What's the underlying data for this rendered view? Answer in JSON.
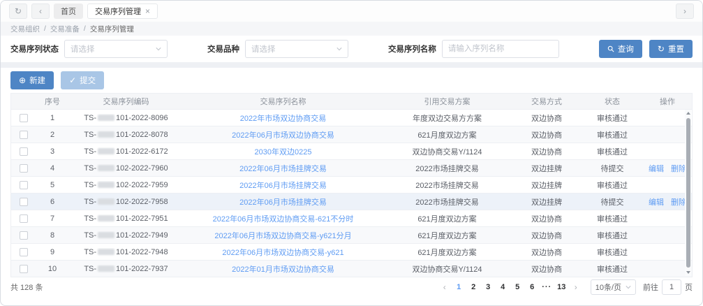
{
  "icons": {
    "refresh": "↻",
    "back": "‹",
    "forward": "›",
    "close": "×",
    "plus": "⊕",
    "check": "✓"
  },
  "colors": {
    "primary_button": "#4e85c5",
    "link": "#5f9cf3"
  },
  "tabbar": {
    "tabs": [
      {
        "label": "首页"
      },
      {
        "label": "交易序列管理"
      }
    ]
  },
  "breadcrumb": {
    "items": [
      "交易组织",
      "交易准备",
      "交易序列管理"
    ],
    "separator": "/"
  },
  "filters": {
    "status_label": "交易序列状态",
    "status_placeholder": "请选择",
    "variety_label": "交易品种",
    "variety_placeholder": "请选择",
    "name_label": "交易序列名称",
    "name_placeholder": "请输入序列名称",
    "search_label": "查询",
    "reset_label": "重置"
  },
  "toolbar": {
    "create_label": "新建",
    "submit_label": "提交"
  },
  "table": {
    "headers": [
      "序号",
      "交易序列编码",
      "交易序列名称",
      "引用交易方案",
      "交易方式",
      "状态",
      "操作"
    ],
    "rows": [
      {
        "no": "1",
        "code_pre": "TS-",
        "code_post": "101-2022-8096",
        "name": "2022年市场双边协商交易",
        "plan": "年度双边交易方方案",
        "mode": "双边协商",
        "status": "审核通过",
        "actions": []
      },
      {
        "no": "2",
        "code_pre": "TS-",
        "code_post": "101-2022-8078",
        "name": "2022年06月市场双边协商交易",
        "plan": "621月度双边方案",
        "mode": "双边协商",
        "status": "审核通过",
        "actions": []
      },
      {
        "no": "3",
        "code_pre": "TS-",
        "code_post": "101-2022-6172",
        "name": "2030年双边0225",
        "plan": "双边协商交易Y/1124",
        "mode": "双边协商",
        "status": "审核通过",
        "actions": []
      },
      {
        "no": "4",
        "code_pre": "TS-",
        "code_post": "102-2022-7960",
        "name": "2022年06月市场挂牌交易",
        "plan": "2022市场挂牌交易",
        "mode": "双边挂牌",
        "status": "待提交",
        "actions": [
          "编辑",
          "删除"
        ]
      },
      {
        "no": "5",
        "code_pre": "TS-",
        "code_post": "102-2022-7959",
        "name": "2022年06月市场挂牌交易",
        "plan": "2022市场挂牌交易",
        "mode": "双边挂牌",
        "status": "审核通过",
        "actions": []
      },
      {
        "no": "6",
        "code_pre": "TS-",
        "code_post": "102-2022-7958",
        "name": "2022年06月市场挂牌交易",
        "plan": "2022市场挂牌交易",
        "mode": "双边挂牌",
        "status": "待提交",
        "actions": [
          "编辑",
          "删除"
        ],
        "highlighted": true
      },
      {
        "no": "7",
        "code_pre": "TS-",
        "code_post": "101-2022-7951",
        "name": "2022年06月市场双边协商交易-621不分时",
        "plan": "621月度双边方案",
        "mode": "双边协商",
        "status": "审核通过",
        "actions": []
      },
      {
        "no": "8",
        "code_pre": "TS-",
        "code_post": "101-2022-7949",
        "name": "2022年06月市场双边协商交易-y621分月",
        "plan": "621月度双边方案",
        "mode": "双边协商",
        "status": "审核通过",
        "actions": []
      },
      {
        "no": "9",
        "code_pre": "TS-",
        "code_post": "101-2022-7948",
        "name": "2022年06月市场双边协商交易-y621",
        "plan": "621月度双边方案",
        "mode": "双边协商",
        "status": "审核通过",
        "actions": []
      },
      {
        "no": "10",
        "code_pre": "TS-",
        "code_post": "101-2022-7937",
        "name": "2022年01月市场双边协商交易",
        "plan": "双边协商交易Y/1124",
        "mode": "双边协商",
        "status": "审核通过",
        "actions": []
      }
    ]
  },
  "footer": {
    "total": "共 128 条",
    "prev_glyph": "‹",
    "next_glyph": "›",
    "pages": [
      "1",
      "2",
      "3",
      "4",
      "5",
      "6",
      "···",
      "13"
    ],
    "active_page": "1",
    "dots_glyph": "···",
    "page_size": "10条/页",
    "goto_label": "前往",
    "goto_value": "1",
    "goto_suffix": "页"
  }
}
